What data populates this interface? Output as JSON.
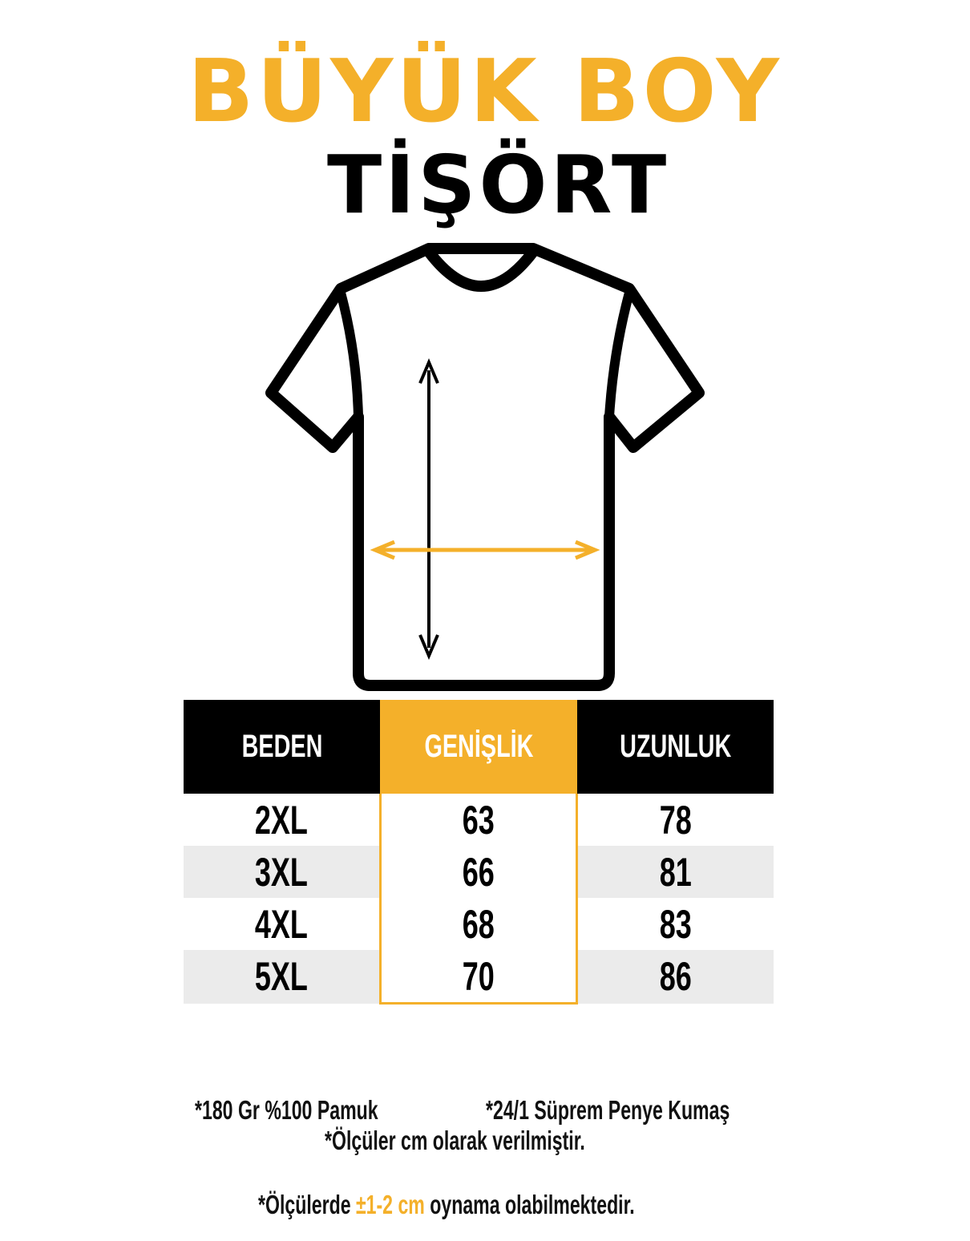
{
  "title": {
    "line1": "BÜYÜK BOY",
    "line2": "TİŞÖRT"
  },
  "colors": {
    "accent": "#F4B02A",
    "header_bg": "#000000",
    "alt_row": "#EBEBEB"
  },
  "diagram": {
    "icon": "t-shirt-outline-icon",
    "length_arrow_color": "#000000",
    "width_arrow_color": "#F4B02A"
  },
  "table": {
    "headers": [
      "BEDEN",
      "GENİŞLİK",
      "UZUNLUK"
    ],
    "rows": [
      [
        "2XL",
        "63",
        "78"
      ],
      [
        "3XL",
        "66",
        "81"
      ],
      [
        "4XL",
        "68",
        "83"
      ],
      [
        "5XL",
        "70",
        "86"
      ]
    ]
  },
  "notes": {
    "fabric_weight": "*180 Gr %100 Pamuk",
    "fabric_type": "*24/1 Süprem Penye Kumaş",
    "unit": "*Ölçüler cm olarak verilmiştir.",
    "tolerance_prefix": "*Ölçülerde ",
    "tolerance_value": "±1-2 cm",
    "tolerance_suffix": " oynama olabilmektedir."
  }
}
